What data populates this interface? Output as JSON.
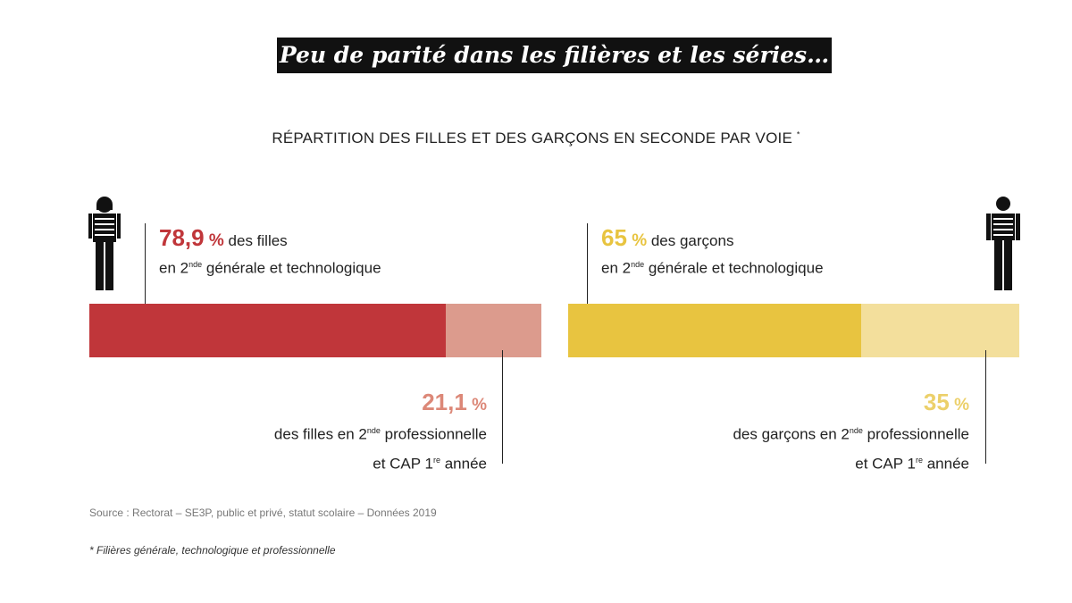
{
  "title": "Peu de parité dans les filières et les séries…",
  "subtitle": "RÉPARTITION DES FILLES ET DES GARÇONS EN SECONDE PAR VOIE",
  "subtitle_mark": "*",
  "chart_data": {
    "type": "bar",
    "title": "Répartition des filles et des garçons en seconde par voie",
    "categories": [
      "Filles",
      "Garçons"
    ],
    "series": [
      {
        "name": "2nde générale et technologique",
        "values": [
          78.9,
          65
        ],
        "colors": [
          "#c0363a",
          "#e8c440"
        ]
      },
      {
        "name": "2nde professionnelle et CAP 1re année",
        "values": [
          21.1,
          35
        ],
        "colors": [
          "#dc9b8d",
          "#f3df9c"
        ]
      }
    ]
  },
  "girls": {
    "top_value": "78,9",
    "top_pct": "%",
    "top_text": "des filles",
    "top_line2_a": "en 2",
    "top_sup": "nde",
    "top_line2_b": "générale et technologique",
    "bottom_value": "21,1",
    "bottom_pct": "%",
    "bottom_line1_a": "des filles en 2",
    "bottom_sup": "nde",
    "bottom_line1_b": "professionnelle",
    "bottom_line2_a": "et CAP 1",
    "bottom_sup2": "re",
    "bottom_line2_b": "année"
  },
  "boys": {
    "top_value": "65",
    "top_pct": "%",
    "top_text": "des garçons",
    "top_line2_a": "en 2",
    "top_sup": "nde",
    "top_line2_b": "générale et technologique",
    "bottom_value": "35",
    "bottom_pct": "%",
    "bottom_line1_a": "des garçons en 2",
    "bottom_sup": "nde",
    "bottom_line1_b": "professionnelle",
    "bottom_line2_a": "et CAP 1",
    "bottom_sup2": "re",
    "bottom_line2_b": "année"
  },
  "source": "Source : Rectorat – SE3P, public et privé, statut scolaire – Données 2019",
  "footnote": "* Filières générale, technologique et professionnelle"
}
